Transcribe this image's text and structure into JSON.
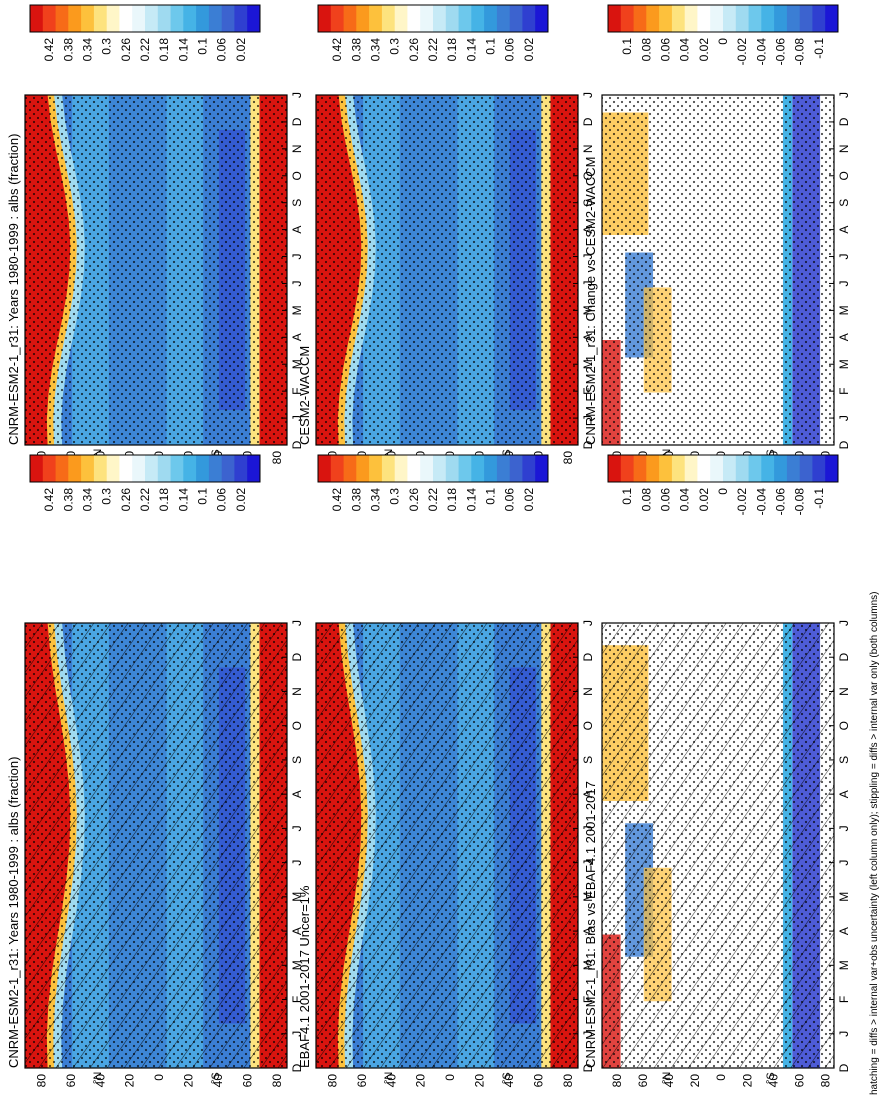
{
  "figure": {
    "footnote": "hatching = diffs > internal var+obs uncertainty (left column only); stippling = diffs > internal var only (both columns)"
  },
  "scales": {
    "abs": {
      "labels": [
        "0.42",
        "0.38",
        "0.34",
        "0.3",
        "0.26",
        "0.22",
        "0.18",
        "0.14",
        "0.1",
        "0.06",
        "0.02"
      ],
      "colors": [
        "#d9140f",
        "#f0411c",
        "#f76b18",
        "#fb9a1d",
        "#fdc13c",
        "#fde37e",
        "#fff6c8",
        "#ffffff",
        "#eaf7fb",
        "#c6eaf6",
        "#9fdaf0",
        "#6dc8ec",
        "#45b3e6",
        "#3399dc",
        "#3b7ed4",
        "#3c63cf",
        "#2f3fd0",
        "#1b16d6"
      ]
    },
    "diff": {
      "labels": [
        "0.1",
        "0.08",
        "0.06",
        "0.04",
        "0.02",
        "0",
        "-0.02",
        "-0.04",
        "-0.06",
        "-0.08",
        "-0.1"
      ],
      "colors": [
        "#d9140f",
        "#f0411c",
        "#f76b18",
        "#fb9a1d",
        "#fdc13c",
        "#fde37e",
        "#fff6c8",
        "#ffffff",
        "#eaf7fb",
        "#c6eaf6",
        "#9fdaf0",
        "#6dc8ec",
        "#45b3e6",
        "#3399dc",
        "#3b7ed4",
        "#3c63cf",
        "#2f3fd0",
        "#1b16d6"
      ]
    }
  },
  "chart_data": [
    {
      "type": "heatmap",
      "title": "CNRM-ESM2-1_r31: Years 1980-1999 : albs (fraction)",
      "x_tick_labels": [
        "D",
        "J",
        "F",
        "M",
        "A",
        "M",
        "J",
        "J",
        "A",
        "S",
        "O",
        "N",
        "D",
        "J"
      ],
      "y_tick_labels": [
        "80",
        "60",
        "40",
        "20",
        "0",
        "20",
        "40",
        "60",
        "80"
      ],
      "y_axis_markers": [
        "N",
        "S"
      ],
      "variable": "albs",
      "overlays": [
        "hatching",
        "stippling"
      ]
    },
    {
      "type": "heatmap",
      "title": "CNRM-ESM2-1_r31: Years 1980-1999 : albs (fraction)",
      "x_tick_labels": [
        "D",
        "J",
        "F",
        "M",
        "A",
        "M",
        "J",
        "J",
        "A",
        "S",
        "O",
        "N",
        "D",
        "J"
      ],
      "y_tick_labels": [
        "80",
        "60",
        "40",
        "20",
        "0",
        "20",
        "40",
        "60",
        "80"
      ],
      "y_axis_markers": [
        "N",
        "S"
      ],
      "variable": "albs",
      "overlays": [
        "stippling"
      ]
    },
    {
      "type": "heatmap",
      "title": "EBAF4.1 2001-2017 Uncer=1%",
      "x_tick_labels": [
        "D",
        "J",
        "F",
        "M",
        "A",
        "M",
        "J",
        "J",
        "A",
        "S",
        "O",
        "N",
        "D",
        "J"
      ],
      "y_tick_labels": [
        "80",
        "60",
        "40",
        "20",
        "0",
        "20",
        "40",
        "60",
        "80"
      ],
      "y_axis_markers": [
        "N",
        "S"
      ],
      "overlays": [
        "hatching",
        "stippling"
      ]
    },
    {
      "type": "heatmap",
      "title": "CESM2-WACCM",
      "x_tick_labels": [
        "D",
        "J",
        "F",
        "M",
        "A",
        "M",
        "J",
        "J",
        "A",
        "S",
        "O",
        "N",
        "D",
        "J"
      ],
      "y_tick_labels": [
        "80",
        "60",
        "40",
        "20",
        "0",
        "20",
        "40",
        "60",
        "80"
      ],
      "y_axis_markers": [
        "N",
        "S"
      ],
      "overlays": [
        "stippling"
      ]
    },
    {
      "type": "heatmap",
      "title": "CNRM-ESM2-1_r31: Bias vs EBAF4.1 2001-2017",
      "x_tick_labels": [
        "D",
        "J",
        "F",
        "M",
        "A",
        "M",
        "J",
        "J",
        "A",
        "S",
        "O",
        "N",
        "D",
        "J"
      ],
      "y_tick_labels": [
        "80",
        "60",
        "40",
        "20",
        "0",
        "20",
        "40",
        "60",
        "80"
      ],
      "y_axis_markers": [
        "N",
        "S"
      ],
      "overlays": [
        "hatching",
        "stippling"
      ]
    },
    {
      "type": "heatmap",
      "title": "CNRM-ESM2-1_r31: Change vs CESM2-WACCM",
      "x_tick_labels": [
        "D",
        "J",
        "F",
        "M",
        "A",
        "M",
        "J",
        "J",
        "A",
        "S",
        "O",
        "N",
        "D",
        "J"
      ],
      "y_tick_labels": [
        "80",
        "60",
        "40",
        "20",
        "0",
        "20",
        "40",
        "60",
        "80"
      ],
      "y_axis_markers": [
        "N",
        "S"
      ],
      "overlays": [
        "stippling"
      ]
    }
  ]
}
